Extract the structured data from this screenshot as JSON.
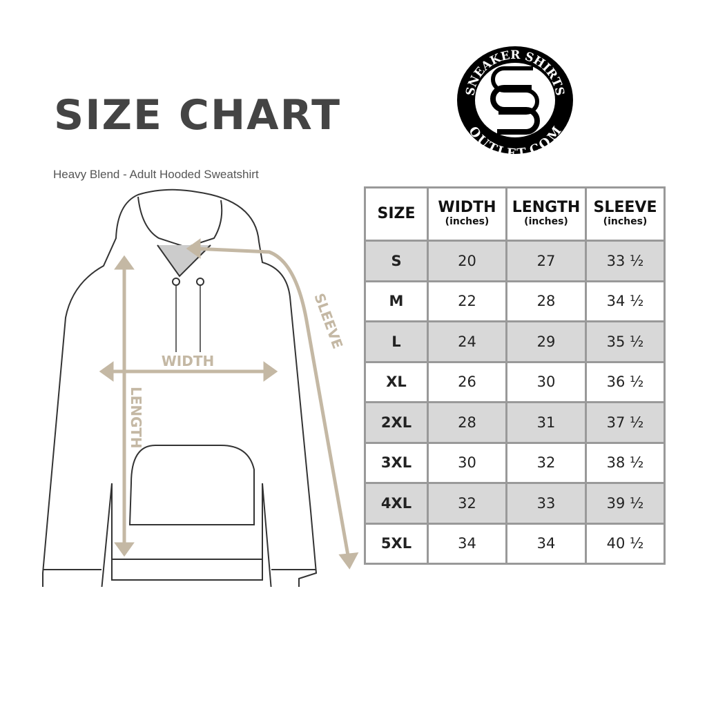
{
  "title": "SIZE CHART",
  "subtitle": "Heavy Blend - Adult Hooded Sweatshirt",
  "logo": {
    "top_text": "SNEAKER SHIRTS",
    "bottom_text": "OUTLET.COM",
    "monogram": "SS"
  },
  "diagram_labels": {
    "width": "WIDTH",
    "length": "LENGTH",
    "sleeve": "SLEEVE"
  },
  "colors": {
    "measure_line": "#c4b8a4",
    "row_shade": "#d8d8d8",
    "border": "#999999",
    "title": "#444444"
  },
  "table": {
    "headers": [
      {
        "label": "SIZE",
        "unit": ""
      },
      {
        "label": "WIDTH",
        "unit": "(inches)"
      },
      {
        "label": "LENGTH",
        "unit": "(inches)"
      },
      {
        "label": "SLEEVE",
        "unit": "(inches)"
      }
    ],
    "rows": [
      [
        "S",
        "20",
        "27",
        "33 ½"
      ],
      [
        "M",
        "22",
        "28",
        "34 ½"
      ],
      [
        "L",
        "24",
        "29",
        "35 ½"
      ],
      [
        "XL",
        "26",
        "30",
        "36 ½"
      ],
      [
        "2XL",
        "28",
        "31",
        "37 ½"
      ],
      [
        "3XL",
        "30",
        "32",
        "38 ½"
      ],
      [
        "4XL",
        "32",
        "33",
        "39 ½"
      ],
      [
        "5XL",
        "34",
        "34",
        "40 ½"
      ]
    ]
  }
}
